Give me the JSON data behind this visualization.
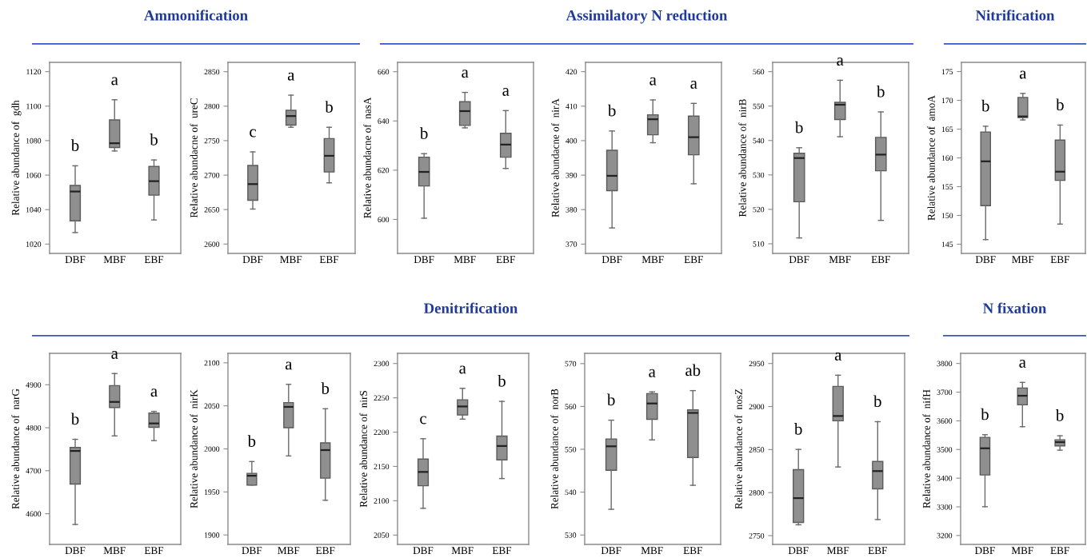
{
  "chart_data": [
    {
      "type": "other",
      "title": "Ammonification"
    },
    {
      "type": "box",
      "ylabel": "Relative abundance of  gdh",
      "categories": [
        "DBF",
        "MBF",
        "EBF"
      ],
      "color": "#8f8f8f",
      "ylim": [
        1014.6,
        1125.4
      ],
      "yticks": [
        1020,
        1040,
        1060,
        1080,
        1100,
        1120
      ],
      "boxes": [
        {
          "low": 1026.7,
          "q1": 1033.5,
          "median": 1050.5,
          "q3": 1054,
          "high": 1065.4
        },
        {
          "low": 1074,
          "q1": 1076,
          "median": 1078.5,
          "q3": 1092,
          "high": 1103.7
        },
        {
          "low": 1034,
          "q1": 1048.4,
          "median": 1056.5,
          "q3": 1065,
          "high": 1068.8
        }
      ],
      "annotations": [
        "b",
        "a",
        "b"
      ]
    },
    {
      "type": "box",
      "ylabel": "Relative abundacne of  ureC",
      "categories": [
        "DBF",
        "MBF",
        "EBF"
      ],
      "color": "#8f8f8f",
      "ylim": [
        2586.4,
        2863.6
      ],
      "yticks": [
        2600,
        2650,
        2700,
        2750,
        2800,
        2850
      ],
      "boxes": [
        {
          "low": 2650.8,
          "q1": 2663.6,
          "median": 2687,
          "q3": 2714,
          "high": 2733.7
        },
        {
          "low": 2769.4,
          "q1": 2772.5,
          "median": 2785.7,
          "q3": 2794,
          "high": 2816
        },
        {
          "low": 2688.8,
          "q1": 2704.6,
          "median": 2728,
          "q3": 2753,
          "high": 2769.4
        }
      ],
      "annotations": [
        "c",
        "a",
        "b"
      ]
    },
    {
      "type": "other",
      "title": "Assimilatory N reduction"
    },
    {
      "type": "box",
      "ylabel": "Relative abundacne of  nasA",
      "categories": [
        "DBF",
        "MBF",
        "EBF"
      ],
      "color": "#8f8f8f",
      "ylim": [
        586.2,
        663.8
      ],
      "yticks": [
        600,
        620,
        640,
        660
      ],
      "boxes": [
        {
          "low": 600.5,
          "q1": 613.6,
          "median": 619.3,
          "q3": 625.3,
          "high": 626.7
        },
        {
          "low": 637.2,
          "q1": 638.2,
          "median": 644,
          "q3": 647.8,
          "high": 651.6
        },
        {
          "low": 620.7,
          "q1": 625.3,
          "median": 630.4,
          "q3": 635,
          "high": 644.2
        }
      ],
      "annotations": [
        "b",
        "a",
        "a"
      ]
    },
    {
      "type": "box",
      "ylabel": "Relative abundacne of  nirA",
      "categories": [
        "DBF",
        "MBF",
        "EBF"
      ],
      "color": "#8f8f8f",
      "ylim": [
        367.3,
        422.7
      ],
      "yticks": [
        370,
        380,
        390,
        400,
        410,
        420
      ],
      "boxes": [
        {
          "low": 374.7,
          "q1": 385.5,
          "median": 389.8,
          "q3": 397.2,
          "high": 402.8
        },
        {
          "low": 399.4,
          "q1": 401.7,
          "median": 406.2,
          "q3": 407.5,
          "high": 411.8
        },
        {
          "low": 387.5,
          "q1": 395.9,
          "median": 401,
          "q3": 407.1,
          "high": 410.8
        }
      ],
      "annotations": [
        "b",
        "a",
        "a"
      ]
    },
    {
      "type": "box",
      "ylabel": "Relative abundance of  nirB",
      "categories": [
        "DBF",
        "MBF",
        "EBF"
      ],
      "color": "#8f8f8f",
      "ylim": [
        507.2,
        562.7
      ],
      "yticks": [
        510,
        520,
        530,
        540,
        550,
        560
      ],
      "boxes": [
        {
          "low": 511.7,
          "q1": 522.2,
          "median": 534.9,
          "q3": 536.3,
          "high": 537.9
        },
        {
          "low": 541.1,
          "q1": 546.1,
          "median": 550.4,
          "q3": 551.1,
          "high": 557.5
        },
        {
          "low": 516.8,
          "q1": 531.2,
          "median": 535.9,
          "q3": 540.9,
          "high": 548.3
        }
      ],
      "annotations": [
        "b",
        "a",
        "b"
      ]
    },
    {
      "type": "other",
      "title": "Nitrification"
    },
    {
      "type": "box",
      "ylabel": "Relative abundance of  amoA",
      "categories": [
        "DBF",
        "MBF",
        "EBF"
      ],
      "color": "#8f8f8f",
      "ylim": [
        143.4,
        176.6
      ],
      "yticks": [
        145,
        150,
        155,
        160,
        165,
        170,
        175
      ],
      "boxes": [
        {
          "low": 145.8,
          "q1": 151.7,
          "median": 159.4,
          "q3": 164.5,
          "high": 165.5
        },
        {
          "low": 166.6,
          "q1": 167,
          "median": 167.2,
          "q3": 170.5,
          "high": 171.2
        },
        {
          "low": 148.5,
          "q1": 156.1,
          "median": 157.6,
          "q3": 163.1,
          "high": 165.7
        }
      ],
      "annotations": [
        "b",
        "a",
        "b"
      ]
    },
    {
      "type": "other",
      "title": "Denitrification"
    },
    {
      "type": "box",
      "ylabel": "Relative abundance of  narG",
      "categories": [
        "DBF",
        "MBF",
        "EBF"
      ],
      "color": "#8f8f8f",
      "ylim": [
        4528.6,
        4973
      ],
      "yticks": [
        4600,
        4700,
        4800,
        4900
      ],
      "boxes": [
        {
          "low": 4575,
          "q1": 4669,
          "median": 4746,
          "q3": 4754,
          "high": 4773
        },
        {
          "low": 4781,
          "q1": 4847,
          "median": 4860,
          "q3": 4898,
          "high": 4926
        },
        {
          "low": 4770,
          "q1": 4801,
          "median": 4810,
          "q3": 4834,
          "high": 4838
        }
      ],
      "annotations": [
        "b",
        "a",
        "a"
      ]
    },
    {
      "type": "box",
      "ylabel": "Relative abundance of  nirK",
      "categories": [
        "DBF",
        "MBF",
        "EBF"
      ],
      "color": "#8f8f8f",
      "ylim": [
        1889,
        2111
      ],
      "yticks": [
        1900,
        1950,
        2000,
        2050,
        2100
      ],
      "boxes": [
        {
          "low": 1958,
          "q1": 1958,
          "median": 1968.8,
          "q3": 1971.6,
          "high": 1985.3
        },
        {
          "low": 1991.8,
          "q1": 2024.6,
          "median": 2048.8,
          "q3": 2053.8,
          "high": 2075
        },
        {
          "low": 1940.3,
          "q1": 1966,
          "median": 1998.6,
          "q3": 2007,
          "high": 2046.6
        }
      ],
      "annotations": [
        "b",
        "a",
        "b"
      ]
    },
    {
      "type": "box",
      "ylabel": "Relative abundance of  nirS",
      "categories": [
        "DBF",
        "MBF",
        "EBF"
      ],
      "color": "#8f8f8f",
      "ylim": [
        2036.4,
        2314.8
      ],
      "yticks": [
        2050,
        2100,
        2150,
        2200,
        2250,
        2300
      ],
      "boxes": [
        {
          "low": 2089,
          "q1": 2121.9,
          "median": 2142,
          "q3": 2160.8,
          "high": 2190.4
        },
        {
          "low": 2219,
          "q1": 2224.9,
          "median": 2237.4,
          "q3": 2247.1,
          "high": 2263.8
        },
        {
          "low": 2132.4,
          "q1": 2159.6,
          "median": 2179.8,
          "q3": 2194.2,
          "high": 2244.8
        }
      ],
      "annotations": [
        "c",
        "a",
        "b"
      ]
    },
    {
      "type": "box",
      "ylabel": "Relative abundance of  norB",
      "categories": [
        "DBF",
        "MBF",
        "EBF"
      ],
      "color": "#8f8f8f",
      "ylim": [
        527.8,
        572.4
      ],
      "yticks": [
        530,
        540,
        550,
        560,
        570
      ],
      "boxes": [
        {
          "low": 536,
          "q1": 545.1,
          "median": 550.7,
          "q3": 552.4,
          "high": 556.8
        },
        {
          "low": 552.2,
          "q1": 557,
          "median": 560.7,
          "q3": 563,
          "high": 563.4
        },
        {
          "low": 541.6,
          "q1": 548.1,
          "median": 558.5,
          "q3": 559.2,
          "high": 563.7
        }
      ],
      "annotations": [
        "b",
        "a",
        "ab"
      ]
    },
    {
      "type": "box",
      "ylabel": "Relative abundance of  nosZ",
      "categories": [
        "DBF",
        "MBF",
        "EBF"
      ],
      "color": "#8f8f8f",
      "ylim": [
        2739.8,
        2961.8
      ],
      "yticks": [
        2750,
        2800,
        2850,
        2900,
        2950
      ],
      "boxes": [
        {
          "low": 2762.6,
          "q1": 2765.3,
          "median": 2793.6,
          "q3": 2826.7,
          "high": 2850.2
        },
        {
          "low": 2829.8,
          "q1": 2883.4,
          "median": 2889,
          "q3": 2923.4,
          "high": 2936.4
        },
        {
          "low": 2768.7,
          "q1": 2804.3,
          "median": 2825,
          "q3": 2836.2,
          "high": 2882.4
        }
      ],
      "annotations": [
        "b",
        "a",
        "b"
      ]
    },
    {
      "type": "other",
      "title": "N fixation"
    },
    {
      "type": "box",
      "ylabel": "Relative abundance of  nifH",
      "categories": [
        "DBF",
        "MBF",
        "EBF"
      ],
      "color": "#8f8f8f",
      "ylim": [
        3169,
        3835.3
      ],
      "yticks": [
        3200,
        3300,
        3400,
        3500,
        3600,
        3700,
        3800
      ],
      "boxes": [
        {
          "low": 3300.5,
          "q1": 3411.2,
          "median": 3504.2,
          "q3": 3542.3,
          "high": 3551.6
        },
        {
          "low": 3579.5,
          "q1": 3655.8,
          "median": 3687.4,
          "q3": 3714.4,
          "high": 3734
        },
        {
          "low": 3497.7,
          "q1": 3512.6,
          "median": 3525.6,
          "q3": 3534,
          "high": 3547.9
        }
      ],
      "annotations": [
        "b",
        "a",
        "b"
      ]
    }
  ]
}
